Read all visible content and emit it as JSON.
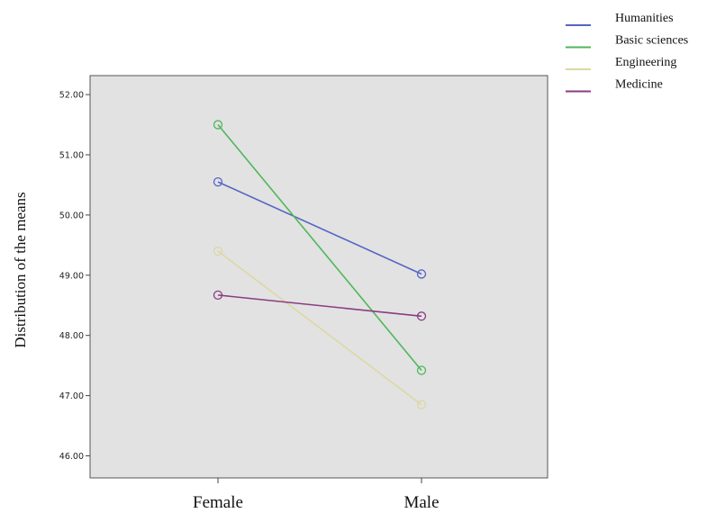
{
  "chart_data": {
    "type": "line",
    "title": "",
    "xlabel": "",
    "ylabel": "Distribution of the means",
    "categories": [
      "Female",
      "Male"
    ],
    "ylim": [
      45.7,
      52.4
    ],
    "yticks": [
      "46.00",
      "47.00",
      "48.00",
      "49.00",
      "50.00",
      "51.00",
      "52.00"
    ],
    "grid": false,
    "legend_placement": "top-right, outside plot",
    "plot_background": "#e2e2e2",
    "series": [
      {
        "name": "Humanities",
        "values": [
          50.55,
          49.02
        ],
        "color": "#5466c4"
      },
      {
        "name": "Basic sciences",
        "values": [
          51.5,
          47.42
        ],
        "color": "#4fb75a"
      },
      {
        "name": "Engineering",
        "values": [
          49.4,
          46.85
        ],
        "color": "#dcd8a4"
      },
      {
        "name": "Medicine",
        "values": [
          48.67,
          48.32
        ],
        "color": "#8b3b85"
      }
    ]
  }
}
